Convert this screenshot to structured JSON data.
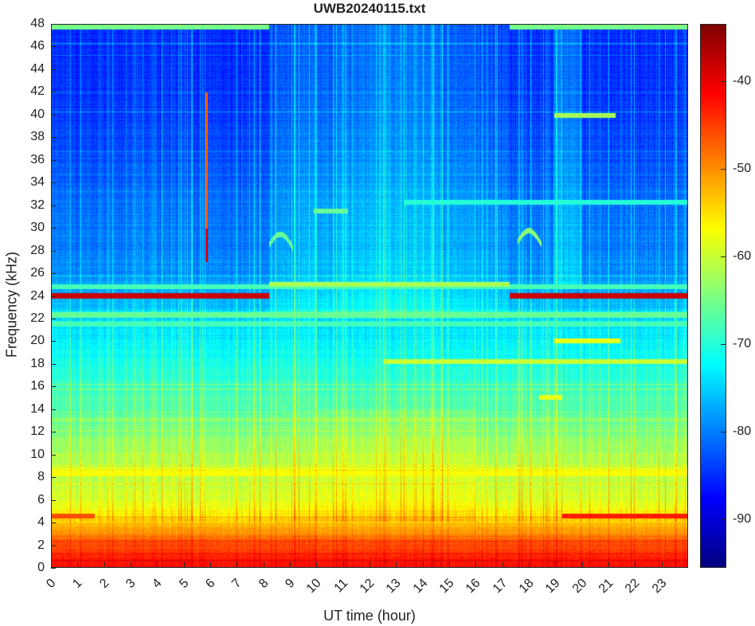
{
  "chart_data": {
    "type": "heatmap",
    "title": "UWB20240115.txt",
    "xlabel": "UT time (hour)",
    "ylabel": "Frequency (kHz)",
    "xlim": [
      0,
      24
    ],
    "ylim": [
      0,
      48
    ],
    "xticks": [
      "0",
      "1",
      "2",
      "3",
      "4",
      "5",
      "6",
      "7",
      "8",
      "9",
      "10",
      "11",
      "12",
      "13",
      "14",
      "15",
      "16",
      "17",
      "18",
      "19",
      "20",
      "21",
      "22",
      "23"
    ],
    "yticks": [
      "0",
      "2",
      "4",
      "6",
      "8",
      "10",
      "12",
      "14",
      "16",
      "18",
      "20",
      "22",
      "24",
      "26",
      "28",
      "30",
      "32",
      "34",
      "36",
      "38",
      "40",
      "42",
      "44",
      "46",
      "48"
    ],
    "colormap": "jet",
    "clim": [
      -95.5,
      -33.5
    ],
    "colorbar_ticks": [
      "-40",
      "-50",
      "-60",
      "-70",
      "-80",
      "-90"
    ],
    "colorbar_tick_values": [
      -40,
      -50,
      -60,
      -70,
      -80,
      -90
    ],
    "grid": false,
    "background_profile": {
      "freq_khz": [
        0,
        1,
        2,
        3,
        4,
        5,
        6,
        8,
        10,
        12,
        14,
        16,
        18,
        20,
        22,
        24,
        26,
        28,
        32,
        36,
        40,
        44,
        48
      ],
      "level_db": [
        -42,
        -43,
        -46,
        -50,
        -54,
        -57,
        -59,
        -61,
        -62,
        -65,
        -67,
        -69,
        -71,
        -73,
        -75,
        -77,
        -79,
        -80,
        -81,
        -83,
        -84,
        -85,
        -85
      ]
    },
    "daytime_enhancement": {
      "start_hour": 8.2,
      "end_hour": 17.3,
      "above_khz": 22,
      "delta_db": 5
    },
    "features": [
      {
        "kind": "hline",
        "freq_khz": 24.0,
        "start": 0,
        "end": 8.2,
        "db": -38
      },
      {
        "kind": "hline",
        "freq_khz": 24.0,
        "start": 17.3,
        "end": 24,
        "db": -38
      },
      {
        "kind": "hline",
        "freq_khz": 24.8,
        "start": 0,
        "end": 24,
        "db": -68
      },
      {
        "kind": "hline",
        "freq_khz": 25.0,
        "start": 8.2,
        "end": 17.3,
        "db": -62
      },
      {
        "kind": "hline",
        "freq_khz": 22.3,
        "start": 0,
        "end": 24,
        "db": -66
      },
      {
        "kind": "hline",
        "freq_khz": 21.5,
        "start": 0,
        "end": 24,
        "db": -68
      },
      {
        "kind": "hline",
        "freq_khz": 18.2,
        "start": 12.5,
        "end": 24,
        "db": -60
      },
      {
        "kind": "hline",
        "freq_khz": 8.2,
        "start": 0,
        "end": 24,
        "db": -57
      },
      {
        "kind": "hline",
        "freq_khz": 8.6,
        "start": 0,
        "end": 24,
        "db": -58
      },
      {
        "kind": "hline",
        "freq_khz": 4.5,
        "start": 0,
        "end": 1.6,
        "db": -46
      },
      {
        "kind": "hline",
        "freq_khz": 4.5,
        "start": 19.3,
        "end": 24,
        "db": -43
      },
      {
        "kind": "hline",
        "freq_khz": 20.0,
        "start": 19.0,
        "end": 21.5,
        "db": -58
      },
      {
        "kind": "hline",
        "freq_khz": 40.0,
        "start": 19.0,
        "end": 21.3,
        "db": -62
      },
      {
        "kind": "hline",
        "freq_khz": 15.0,
        "start": 18.4,
        "end": 19.3,
        "db": -58
      },
      {
        "kind": "hline",
        "freq_khz": 32.3,
        "start": 13.3,
        "end": 24,
        "db": -70
      },
      {
        "kind": "hline",
        "freq_khz": 31.5,
        "start": 9.9,
        "end": 11.2,
        "db": -66
      },
      {
        "kind": "hline",
        "freq_khz": 47.8,
        "start": 0,
        "end": 8.2,
        "db": -65
      },
      {
        "kind": "hline",
        "freq_khz": 47.8,
        "start": 17.3,
        "end": 24,
        "db": -65
      },
      {
        "kind": "vline",
        "hour": 5.85,
        "from_khz": 27,
        "to_khz": 42,
        "db": -47
      },
      {
        "kind": "arc",
        "hour": 8.2,
        "freq_khz": 28.5,
        "db": -66
      },
      {
        "kind": "arc",
        "hour": 17.6,
        "freq_khz": 28.8,
        "db": -64
      }
    ]
  }
}
